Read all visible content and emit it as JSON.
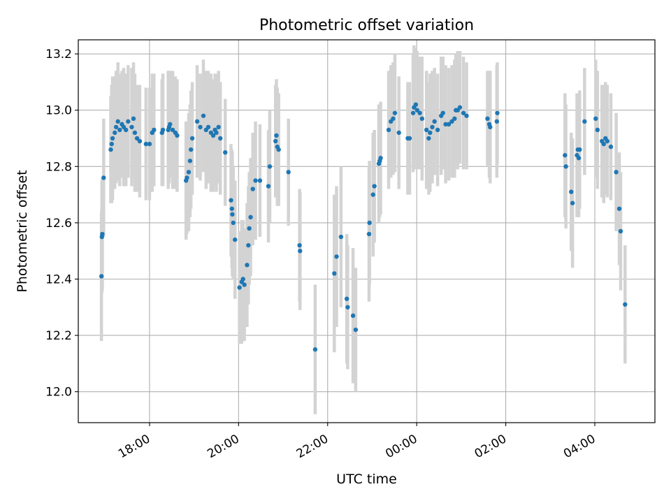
{
  "chart_data": {
    "type": "scatter",
    "title": "Photometric offset variation",
    "xlabel": "UTC time",
    "ylabel": "Photometric offset",
    "grid": true,
    "legend": "none",
    "x_axis": {
      "type": "time",
      "ticks": [
        "18:00",
        "20:00",
        "22:00",
        "00:00",
        "02:00",
        "04:00"
      ],
      "tick_values_hours": [
        18,
        20,
        22,
        24,
        26,
        28
      ],
      "range_hours": [
        16.4,
        29.35
      ]
    },
    "y_axis": {
      "ticks": [
        "12.0",
        "12.2",
        "12.4",
        "12.6",
        "12.8",
        "13.0",
        "13.2"
      ],
      "tick_values": [
        12.0,
        12.2,
        12.4,
        12.6,
        12.8,
        13.0,
        13.2
      ],
      "ylim": [
        11.89,
        13.25
      ]
    },
    "colors": {
      "point": "#1f77b4",
      "errorbar": "#d3d3d3",
      "grid": "#b0b0b0"
    },
    "series": [
      {
        "points": [
          {
            "t": 16.92,
            "y": 12.41,
            "err": 0.23
          },
          {
            "t": 16.93,
            "y": 12.55,
            "err": 0.2
          },
          {
            "t": 16.94,
            "y": 12.56,
            "err": 0.2
          },
          {
            "t": 16.97,
            "y": 12.76,
            "err": 0.21
          },
          {
            "t": 17.13,
            "y": 12.86,
            "err": 0.19
          },
          {
            "t": 17.15,
            "y": 12.88,
            "err": 0.21
          },
          {
            "t": 17.17,
            "y": 12.9,
            "err": 0.22
          },
          {
            "t": 17.22,
            "y": 12.92,
            "err": 0.2
          },
          {
            "t": 17.25,
            "y": 12.94,
            "err": 0.2
          },
          {
            "t": 17.29,
            "y": 12.96,
            "err": 0.21
          },
          {
            "t": 17.33,
            "y": 12.93,
            "err": 0.2
          },
          {
            "t": 17.38,
            "y": 12.95,
            "err": 0.19
          },
          {
            "t": 17.42,
            "y": 12.94,
            "err": 0.21
          },
          {
            "t": 17.47,
            "y": 12.93,
            "err": 0.2
          },
          {
            "t": 17.52,
            "y": 12.96,
            "err": 0.2
          },
          {
            "t": 17.6,
            "y": 12.94,
            "err": 0.21
          },
          {
            "t": 17.64,
            "y": 12.97,
            "err": 0.2
          },
          {
            "t": 17.67,
            "y": 12.92,
            "err": 0.21
          },
          {
            "t": 17.72,
            "y": 12.9,
            "err": 0.19
          },
          {
            "t": 17.78,
            "y": 12.89,
            "err": 0.2
          },
          {
            "t": 17.92,
            "y": 12.88,
            "err": 0.2
          },
          {
            "t": 18.0,
            "y": 12.88,
            "err": 0.2
          },
          {
            "t": 18.06,
            "y": 12.92,
            "err": 0.21
          },
          {
            "t": 18.1,
            "y": 12.93,
            "err": 0.2
          },
          {
            "t": 18.28,
            "y": 12.92,
            "err": 0.19
          },
          {
            "t": 18.3,
            "y": 12.93,
            "err": 0.2
          },
          {
            "t": 18.42,
            "y": 12.93,
            "err": 0.21
          },
          {
            "t": 18.44,
            "y": 12.94,
            "err": 0.2
          },
          {
            "t": 18.46,
            "y": 12.95,
            "err": 0.19
          },
          {
            "t": 18.52,
            "y": 12.93,
            "err": 0.21
          },
          {
            "t": 18.58,
            "y": 12.92,
            "err": 0.2
          },
          {
            "t": 18.62,
            "y": 12.91,
            "err": 0.2
          },
          {
            "t": 18.82,
            "y": 12.75,
            "err": 0.21
          },
          {
            "t": 18.84,
            "y": 12.76,
            "err": 0.2
          },
          {
            "t": 18.88,
            "y": 12.78,
            "err": 0.21
          },
          {
            "t": 18.91,
            "y": 12.82,
            "err": 0.2
          },
          {
            "t": 18.93,
            "y": 12.86,
            "err": 0.21
          },
          {
            "t": 18.96,
            "y": 12.9,
            "err": 0.2
          },
          {
            "t": 19.07,
            "y": 12.96,
            "err": 0.2
          },
          {
            "t": 19.14,
            "y": 12.94,
            "err": 0.19
          },
          {
            "t": 19.21,
            "y": 12.98,
            "err": 0.2
          },
          {
            "t": 19.27,
            "y": 12.93,
            "err": 0.21
          },
          {
            "t": 19.32,
            "y": 12.94,
            "err": 0.2
          },
          {
            "t": 19.38,
            "y": 12.92,
            "err": 0.21
          },
          {
            "t": 19.43,
            "y": 12.91,
            "err": 0.2
          },
          {
            "t": 19.47,
            "y": 12.93,
            "err": 0.2
          },
          {
            "t": 19.5,
            "y": 12.92,
            "err": 0.21
          },
          {
            "t": 19.55,
            "y": 12.94,
            "err": 0.2
          },
          {
            "t": 19.59,
            "y": 12.9,
            "err": 0.2
          },
          {
            "t": 19.7,
            "y": 12.85,
            "err": 0.19
          },
          {
            "t": 19.83,
            "y": 12.68,
            "err": 0.2
          },
          {
            "t": 19.85,
            "y": 12.65,
            "err": 0.21
          },
          {
            "t": 19.86,
            "y": 12.63,
            "err": 0.22
          },
          {
            "t": 19.88,
            "y": 12.6,
            "err": 0.2
          },
          {
            "t": 19.92,
            "y": 12.54,
            "err": 0.21
          },
          {
            "t": 20.02,
            "y": 12.37,
            "err": 0.2
          },
          {
            "t": 20.07,
            "y": 12.39,
            "err": 0.22
          },
          {
            "t": 20.1,
            "y": 12.4,
            "err": 0.21
          },
          {
            "t": 20.13,
            "y": 12.38,
            "err": 0.2
          },
          {
            "t": 20.19,
            "y": 12.45,
            "err": 0.22
          },
          {
            "t": 20.22,
            "y": 12.52,
            "err": 0.21
          },
          {
            "t": 20.24,
            "y": 12.58,
            "err": 0.2
          },
          {
            "t": 20.27,
            "y": 12.62,
            "err": 0.21
          },
          {
            "t": 20.32,
            "y": 12.72,
            "err": 0.2
          },
          {
            "t": 20.38,
            "y": 12.75,
            "err": 0.21
          },
          {
            "t": 20.48,
            "y": 12.75,
            "err": 0.2
          },
          {
            "t": 20.67,
            "y": 12.73,
            "err": 0.2
          },
          {
            "t": 20.7,
            "y": 12.8,
            "err": 0.2
          },
          {
            "t": 20.83,
            "y": 12.89,
            "err": 0.2
          },
          {
            "t": 20.85,
            "y": 12.91,
            "err": 0.2
          },
          {
            "t": 20.87,
            "y": 12.87,
            "err": 0.21
          },
          {
            "t": 20.9,
            "y": 12.86,
            "err": 0.2
          },
          {
            "t": 21.12,
            "y": 12.78,
            "err": 0.19
          },
          {
            "t": 21.37,
            "y": 12.52,
            "err": 0.2
          },
          {
            "t": 21.38,
            "y": 12.5,
            "err": 0.21
          },
          {
            "t": 21.72,
            "y": 12.15,
            "err": 0.23
          },
          {
            "t": 22.15,
            "y": 12.42,
            "err": 0.28
          },
          {
            "t": 22.2,
            "y": 12.48,
            "err": 0.25
          },
          {
            "t": 22.3,
            "y": 12.55,
            "err": 0.25
          },
          {
            "t": 22.43,
            "y": 12.33,
            "err": 0.23
          },
          {
            "t": 22.45,
            "y": 12.3,
            "err": 0.22
          },
          {
            "t": 22.57,
            "y": 12.27,
            "err": 0.24
          },
          {
            "t": 22.63,
            "y": 12.22,
            "err": 0.22
          },
          {
            "t": 22.93,
            "y": 12.56,
            "err": 0.24
          },
          {
            "t": 22.94,
            "y": 12.6,
            "err": 0.22
          },
          {
            "t": 23.02,
            "y": 12.7,
            "err": 0.22
          },
          {
            "t": 23.05,
            "y": 12.73,
            "err": 0.2
          },
          {
            "t": 23.15,
            "y": 12.81,
            "err": 0.21
          },
          {
            "t": 23.17,
            "y": 12.82,
            "err": 0.2
          },
          {
            "t": 23.19,
            "y": 12.83,
            "err": 0.2
          },
          {
            "t": 23.37,
            "y": 12.93,
            "err": 0.21
          },
          {
            "t": 23.42,
            "y": 12.96,
            "err": 0.2
          },
          {
            "t": 23.47,
            "y": 12.97,
            "err": 0.2
          },
          {
            "t": 23.51,
            "y": 12.99,
            "err": 0.21
          },
          {
            "t": 23.6,
            "y": 12.92,
            "err": 0.2
          },
          {
            "t": 23.8,
            "y": 12.9,
            "err": 0.2
          },
          {
            "t": 23.84,
            "y": 12.9,
            "err": 0.2
          },
          {
            "t": 23.92,
            "y": 12.99,
            "err": 0.21
          },
          {
            "t": 23.94,
            "y": 13.01,
            "err": 0.22
          },
          {
            "t": 23.98,
            "y": 13.02,
            "err": 0.2
          },
          {
            "t": 24.01,
            "y": 13.0,
            "err": 0.21
          },
          {
            "t": 24.07,
            "y": 12.99,
            "err": 0.2
          },
          {
            "t": 24.12,
            "y": 12.97,
            "err": 0.22
          },
          {
            "t": 24.22,
            "y": 12.93,
            "err": 0.21
          },
          {
            "t": 24.27,
            "y": 12.9,
            "err": 0.2
          },
          {
            "t": 24.3,
            "y": 12.92,
            "err": 0.21
          },
          {
            "t": 24.35,
            "y": 12.94,
            "err": 0.2
          },
          {
            "t": 24.4,
            "y": 12.96,
            "err": 0.19
          },
          {
            "t": 24.47,
            "y": 12.93,
            "err": 0.2
          },
          {
            "t": 24.55,
            "y": 12.98,
            "err": 0.21
          },
          {
            "t": 24.59,
            "y": 12.99,
            "err": 0.2
          },
          {
            "t": 24.65,
            "y": 12.95,
            "err": 0.21
          },
          {
            "t": 24.72,
            "y": 12.95,
            "err": 0.2
          },
          {
            "t": 24.79,
            "y": 12.96,
            "err": 0.2
          },
          {
            "t": 24.85,
            "y": 12.97,
            "err": 0.21
          },
          {
            "t": 24.88,
            "y": 13.0,
            "err": 0.2
          },
          {
            "t": 24.92,
            "y": 13.0,
            "err": 0.21
          },
          {
            "t": 24.97,
            "y": 13.01,
            "err": 0.2
          },
          {
            "t": 25.05,
            "y": 12.99,
            "err": 0.2
          },
          {
            "t": 25.12,
            "y": 12.98,
            "err": 0.19
          },
          {
            "t": 25.59,
            "y": 12.97,
            "err": 0.17
          },
          {
            "t": 25.63,
            "y": 12.95,
            "err": 0.19
          },
          {
            "t": 25.65,
            "y": 12.94,
            "err": 0.2
          },
          {
            "t": 25.8,
            "y": 12.96,
            "err": 0.2
          },
          {
            "t": 25.81,
            "y": 12.99,
            "err": 0.18
          },
          {
            "t": 27.33,
            "y": 12.84,
            "err": 0.22
          },
          {
            "t": 27.35,
            "y": 12.8,
            "err": 0.22
          },
          {
            "t": 27.47,
            "y": 12.71,
            "err": 0.21
          },
          {
            "t": 27.5,
            "y": 12.67,
            "err": 0.23
          },
          {
            "t": 27.6,
            "y": 12.84,
            "err": 0.22
          },
          {
            "t": 27.62,
            "y": 12.86,
            "err": 0.2
          },
          {
            "t": 27.64,
            "y": 12.83,
            "err": 0.21
          },
          {
            "t": 27.66,
            "y": 12.86,
            "err": 0.21
          },
          {
            "t": 27.77,
            "y": 12.96,
            "err": 0.19
          },
          {
            "t": 28.02,
            "y": 12.97,
            "err": 0.21
          },
          {
            "t": 28.06,
            "y": 12.93,
            "err": 0.21
          },
          {
            "t": 28.16,
            "y": 12.89,
            "err": 0.2
          },
          {
            "t": 28.2,
            "y": 12.88,
            "err": 0.21
          },
          {
            "t": 28.24,
            "y": 12.9,
            "err": 0.2
          },
          {
            "t": 28.28,
            "y": 12.89,
            "err": 0.2
          },
          {
            "t": 28.36,
            "y": 12.87,
            "err": 0.19
          },
          {
            "t": 28.48,
            "y": 12.78,
            "err": 0.21
          },
          {
            "t": 28.55,
            "y": 12.65,
            "err": 0.2
          },
          {
            "t": 28.58,
            "y": 12.57,
            "err": 0.21
          },
          {
            "t": 28.68,
            "y": 12.31,
            "err": 0.21
          }
        ]
      }
    ]
  }
}
